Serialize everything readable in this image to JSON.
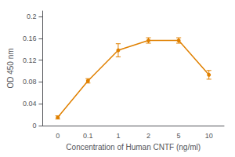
{
  "chart_data": {
    "type": "line",
    "xlabel": "Concentration of Human CNTF (ng/ml)",
    "ylabel": "OD 450 nm",
    "categories": [
      "0",
      "0.1",
      "1",
      "2",
      "5",
      "10"
    ],
    "values": [
      0.015,
      0.082,
      0.138,
      0.156,
      0.156,
      0.093
    ],
    "yerr": [
      0.003,
      0.004,
      0.012,
      0.005,
      0.005,
      0.008
    ],
    "color": "#E08000",
    "marker": "circle",
    "ylim": [
      0,
      0.21
    ],
    "yticks": [
      0,
      0.04,
      0.08,
      0.12,
      0.16,
      0.2
    ],
    "grid": false
  }
}
